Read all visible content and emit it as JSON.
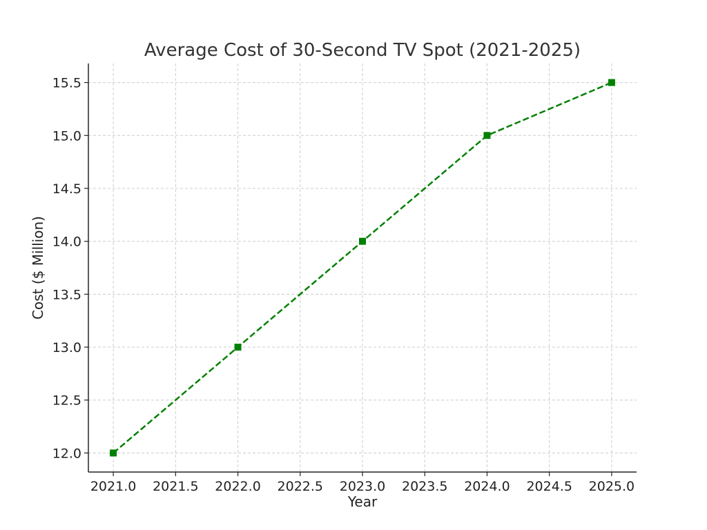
{
  "chart_data": {
    "type": "line",
    "title": "Average Cost of 30-Second TV Spot (2021-2025)",
    "xlabel": "Year",
    "ylabel": "Cost ($ Million)",
    "xlim": [
      2020.8,
      2025.2
    ],
    "ylim": [
      11.82,
      15.68
    ],
    "x_ticks": [
      2021.0,
      2021.5,
      2022.0,
      2022.5,
      2023.0,
      2023.5,
      2024.0,
      2024.5,
      2025.0
    ],
    "x_tick_labels": [
      "2021.0",
      "2021.5",
      "2022.0",
      "2022.5",
      "2023.0",
      "2023.5",
      "2024.0",
      "2024.5",
      "2025.0"
    ],
    "y_ticks": [
      12.0,
      12.5,
      13.0,
      13.5,
      14.0,
      14.5,
      15.0,
      15.5
    ],
    "y_tick_labels": [
      "12.0",
      "12.5",
      "13.0",
      "13.5",
      "14.0",
      "14.5",
      "15.0",
      "15.5"
    ],
    "grid": true,
    "series": [
      {
        "color": "#008000",
        "line_style": "dashed",
        "marker": "square",
        "x": [
          2021,
          2022,
          2023,
          2024,
          2025
        ],
        "y": [
          12.0,
          13.0,
          14.0,
          15.0,
          15.5
        ]
      }
    ]
  }
}
